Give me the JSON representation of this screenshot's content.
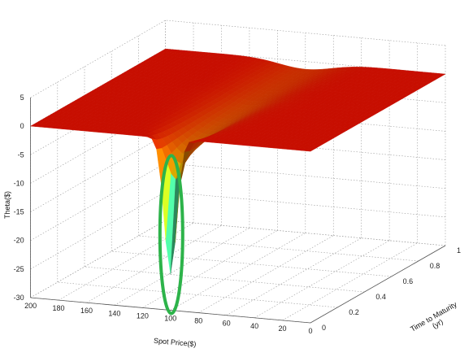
{
  "chart_data": {
    "type": "surface",
    "title": "",
    "xlabel": "Spot Price($)",
    "ylabel": "Time to Maturity\n(yr)",
    "zlabel": "Theta($)",
    "xlim": [
      0,
      200
    ],
    "ylim": [
      0,
      1
    ],
    "zlim": [
      -30,
      5
    ],
    "x_ticks": [
      0,
      20,
      40,
      60,
      80,
      100,
      120,
      140,
      160,
      180,
      200
    ],
    "y_ticks": [
      0,
      0.2,
      0.4,
      0.6,
      0.8,
      1
    ],
    "z_ticks": [
      5,
      0,
      -5,
      -10,
      -15,
      -20,
      -25,
      -30
    ],
    "grid": true,
    "colormap": "jet",
    "strike": 100,
    "surface": {
      "plateau_theta": 0,
      "min_theta_at_strike_near_expiry": -30,
      "theta_at_strike_y1": -1.5
    },
    "annotation": {
      "shape": "ellipse",
      "color": "#2db34a",
      "target": "spot price 100, time to maturity 0, theta -3 to -30"
    }
  }
}
